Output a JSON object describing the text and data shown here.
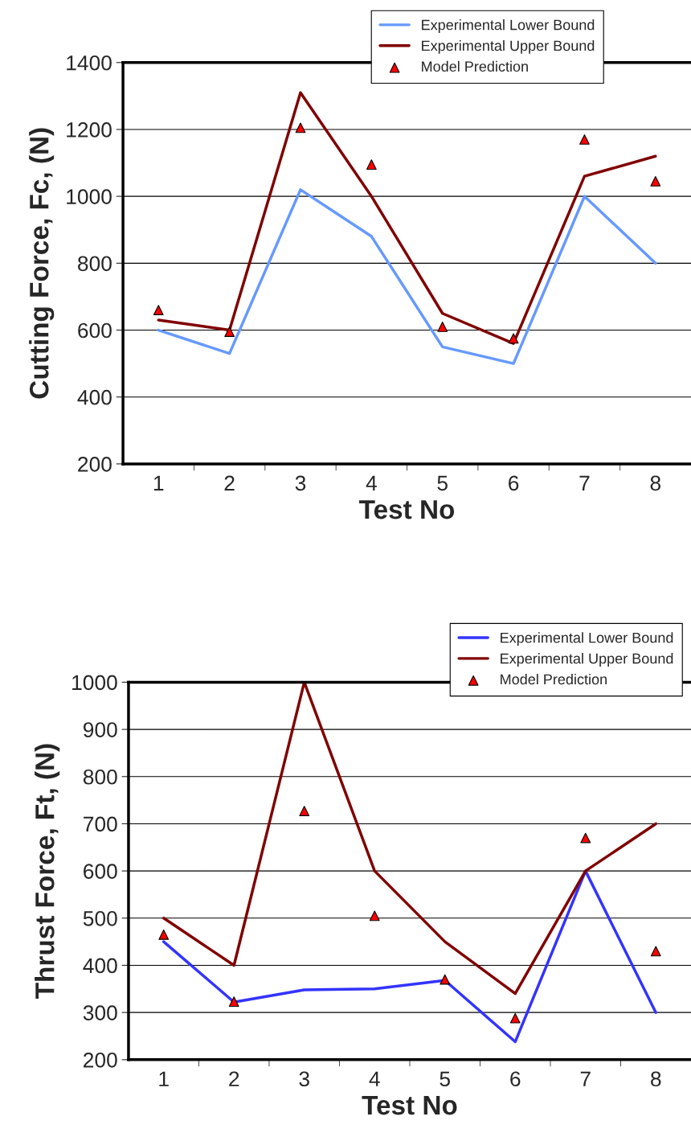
{
  "chart_data": [
    {
      "type": "line",
      "xlabel": "Test No",
      "ylabel": "Cutting Force, Fc, (N)",
      "categories": [
        "1",
        "2",
        "3",
        "4",
        "5",
        "6",
        "7",
        "8"
      ],
      "ylim": [
        200,
        1400
      ],
      "yticks": [
        200,
        400,
        600,
        800,
        1000,
        1200,
        1400
      ],
      "grid": "y",
      "legend": "top right",
      "series": [
        {
          "name": "Experimental Lower Bound",
          "color": "#6699ff",
          "values": [
            600,
            530,
            1020,
            880,
            550,
            500,
            1000,
            800
          ]
        },
        {
          "name": "Experimental Upper Bound",
          "color": "#800000",
          "values": [
            630,
            600,
            1310,
            1000,
            650,
            560,
            1060,
            1120
          ]
        },
        {
          "name": "Model Prediction",
          "type": "scatter",
          "marker": "triangle",
          "color": "#ff0000",
          "values": [
            660,
            595,
            1205,
            1095,
            610,
            575,
            1170,
            1045
          ]
        }
      ]
    },
    {
      "type": "line",
      "xlabel": "Test No",
      "ylabel": "Thrust Force, Ft, (N)",
      "categories": [
        "1",
        "2",
        "3",
        "4",
        "5",
        "6",
        "7",
        "8"
      ],
      "ylim": [
        200,
        1000
      ],
      "yticks": [
        200,
        300,
        400,
        500,
        600,
        700,
        800,
        900,
        1000
      ],
      "grid": "y",
      "legend": "top right",
      "series": [
        {
          "name": "Experimental Lower Bound",
          "color": "#3333ff",
          "values": [
            450,
            322,
            348,
            350,
            368,
            238,
            600,
            300
          ]
        },
        {
          "name": "Experimental Upper Bound",
          "color": "#800000",
          "values": [
            500,
            400,
            1000,
            600,
            450,
            340,
            600,
            700
          ]
        },
        {
          "name": "Model Prediction",
          "type": "scatter",
          "marker": "triangle",
          "color": "#ff0000",
          "values": [
            465,
            323,
            727,
            505,
            370,
            288,
            670,
            430
          ]
        }
      ]
    }
  ]
}
